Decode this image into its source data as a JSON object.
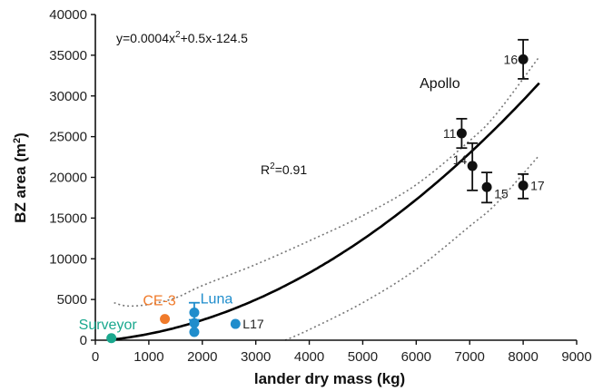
{
  "chart_data": {
    "type": "scatter",
    "xlabel": "lander dry mass (kg)",
    "ylabel_main": "BZ area (m",
    "ylabel_sup": "2",
    "ylabel_tail": ")",
    "xlim": [
      0,
      9000
    ],
    "ylim": [
      0,
      40000
    ],
    "x_ticks": [
      "0",
      "1000",
      "2000",
      "3000",
      "4000",
      "5000",
      "6000",
      "7000",
      "8000",
      "9000"
    ],
    "y_ticks": [
      "0",
      "5000",
      "10000",
      "15000",
      "20000",
      "25000",
      "30000",
      "35000",
      "40000"
    ],
    "x_tick_values": [
      0,
      1000,
      2000,
      3000,
      4000,
      5000,
      6000,
      7000,
      8000,
      9000
    ],
    "y_tick_values": [
      0,
      5000,
      10000,
      15000,
      20000,
      25000,
      30000,
      35000,
      40000
    ],
    "grid": false,
    "equation": {
      "pre": "y=0.0004x",
      "sup": "2",
      "post": "+0.5x-124.5"
    },
    "r_squared": {
      "pre": "R",
      "sup": "2",
      "post": "=0.91"
    },
    "fit": {
      "a": 0.0004,
      "b": 0.5,
      "c": -124.5,
      "x_range": [
        300,
        8300
      ]
    },
    "confidence_bands": {
      "upper": [
        [
          350,
          4600
        ],
        [
          600,
          4200
        ],
        [
          1000,
          4400
        ],
        [
          1500,
          5200
        ],
        [
          2000,
          6700
        ],
        [
          3000,
          9300
        ],
        [
          4000,
          12200
        ],
        [
          5000,
          15300
        ],
        [
          6000,
          19100
        ],
        [
          7000,
          24500
        ],
        [
          7500,
          27800
        ],
        [
          8300,
          34800
        ]
      ],
      "lower": [
        [
          3550,
          0
        ],
        [
          4000,
          1300
        ],
        [
          5000,
          4600
        ],
        [
          6000,
          8700
        ],
        [
          7000,
          14000
        ],
        [
          7500,
          16800
        ],
        [
          8300,
          22700
        ]
      ]
    },
    "groups": [
      {
        "name": "Surveyor",
        "color": "#1aa88e",
        "label_color": "#1aa88e",
        "points": [
          {
            "x": 300,
            "y": 250
          }
        ]
      },
      {
        "name": "CE-3",
        "color": "#f07a2a",
        "label_color": "#f07a2a",
        "points": [
          {
            "x": 1300,
            "y": 2600
          }
        ]
      },
      {
        "name": "Luna",
        "color": "#1f8dcc",
        "label_color": "#1f8dcc",
        "points": [
          {
            "x": 1850,
            "y": 3400,
            "err_low": 2500,
            "err_high": 4600
          },
          {
            "x": 1850,
            "y": 2100
          },
          {
            "x": 1850,
            "y": 1000
          },
          {
            "x": 2620,
            "y": 2000,
            "label": "L17"
          }
        ]
      },
      {
        "name": "Apollo",
        "color": "#111111",
        "label_color": "#111111",
        "points": [
          {
            "x": 6850,
            "y": 25400,
            "err_low": 23600,
            "err_high": 27200,
            "label": "11"
          },
          {
            "x": 7050,
            "y": 21400,
            "err_low": 18400,
            "err_high": 24200,
            "label": "14"
          },
          {
            "x": 7320,
            "y": 18800,
            "err_low": 16900,
            "err_high": 20600,
            "label": "15"
          },
          {
            "x": 8000,
            "y": 34500,
            "err_low": 32100,
            "err_high": 36900,
            "label": "16"
          },
          {
            "x": 8000,
            "y": 19000,
            "err_low": 17400,
            "err_high": 20400,
            "label": "17"
          }
        ]
      }
    ]
  }
}
